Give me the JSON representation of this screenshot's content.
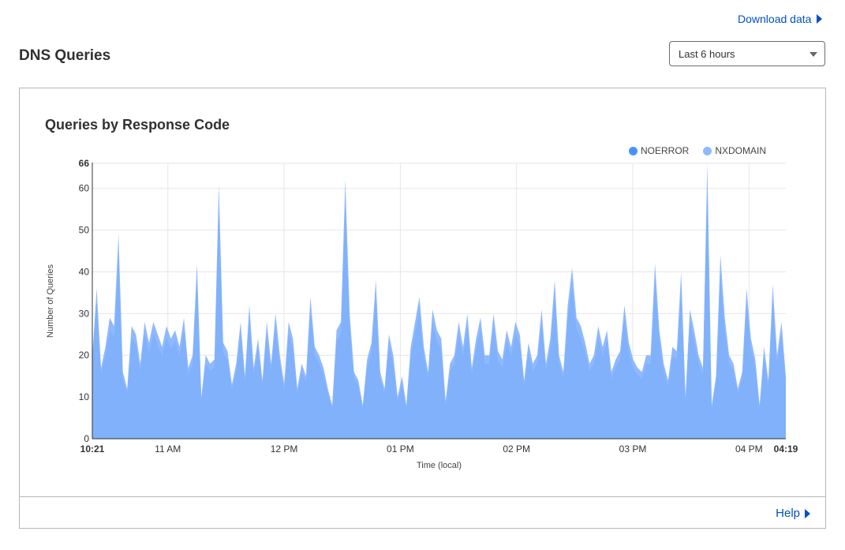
{
  "header": {
    "download_label": "Download data",
    "title": "DNS Queries",
    "range_select": {
      "selected": "Last 6 hours"
    }
  },
  "card": {
    "title": "Queries by Response Code",
    "help_label": "Help"
  },
  "colors": {
    "noerror": "#4693ff",
    "nxdomain": "#8fb9ff",
    "link": "#0051c3"
  },
  "chart_data": {
    "type": "area",
    "stacked": true,
    "title": "Queries by Response Code",
    "xlabel": "Time (local)",
    "ylabel": "Number of Queries",
    "ylim": [
      0,
      66
    ],
    "yticks": [
      "0",
      "10",
      "20",
      "30",
      "40",
      "50",
      "60",
      "66"
    ],
    "xticks": [
      "10:21",
      "11 AM",
      "12 PM",
      "01 PM",
      "02 PM",
      "03 PM",
      "04 PM",
      "04:19"
    ],
    "legend_position": "top-right",
    "grid": true,
    "series": [
      {
        "name": "NOERROR",
        "values": [
          0,
          0,
          0,
          0,
          0,
          0,
          0,
          0,
          0,
          0,
          0,
          0,
          0,
          0,
          0,
          0,
          0,
          0,
          0,
          0,
          0,
          0,
          0,
          0,
          0,
          0,
          0,
          0,
          0,
          0,
          0,
          0,
          0,
          0,
          0,
          0,
          0,
          0,
          0,
          0,
          0,
          0,
          0,
          0,
          0,
          0,
          0,
          0,
          0,
          0,
          0,
          0,
          0,
          0,
          0,
          0,
          0,
          0,
          0,
          0,
          0,
          0,
          0,
          0,
          0,
          0,
          0,
          0,
          0,
          0,
          0,
          0,
          0,
          0,
          0,
          0,
          0,
          0,
          0,
          0,
          0,
          0,
          0,
          0,
          0,
          0,
          0,
          0,
          0,
          0,
          0,
          0,
          0,
          0,
          0,
          0,
          0,
          0,
          0,
          0,
          0,
          0,
          0,
          0,
          0,
          0,
          0,
          0,
          0,
          0,
          0,
          0,
          0,
          0,
          0,
          0,
          0,
          0,
          0,
          0,
          0,
          0,
          0,
          0,
          0,
          0,
          0,
          0,
          0,
          0,
          0,
          0,
          0,
          0,
          0,
          0,
          0,
          0,
          0,
          0,
          0,
          0,
          0,
          0,
          0,
          0,
          0,
          0,
          0,
          0,
          0,
          0,
          0,
          0,
          0,
          0,
          0,
          0,
          0,
          0
        ]
      },
      {
        "name": "NXDOMAIN",
        "values": [
          20,
          36,
          17,
          22,
          29,
          27,
          49,
          16,
          12,
          27,
          25,
          18,
          28,
          23,
          28,
          25,
          22,
          27,
          24,
          26,
          22,
          29,
          17,
          20,
          42,
          10,
          20,
          18,
          19,
          61,
          23,
          21,
          13,
          18,
          28,
          15,
          32,
          17,
          24,
          14,
          28,
          18,
          30,
          20,
          13,
          28,
          24,
          12,
          18,
          15,
          34,
          22,
          20,
          17,
          12,
          8,
          26,
          28,
          62,
          30,
          16,
          14,
          8,
          19,
          23,
          38,
          16,
          12,
          25,
          20,
          10,
          15,
          8,
          22,
          28,
          34,
          22,
          16,
          31,
          26,
          24,
          9,
          18,
          20,
          28,
          22,
          30,
          17,
          24,
          29,
          20,
          20,
          30,
          21,
          19,
          26,
          22,
          28,
          25,
          14,
          23,
          18,
          20,
          31,
          18,
          24,
          38,
          20,
          16,
          32,
          41,
          29,
          27,
          23,
          18,
          20,
          27,
          22,
          26,
          16,
          19,
          21,
          32,
          23,
          19,
          17,
          16,
          20,
          20,
          42,
          26,
          18,
          14,
          22,
          21,
          40,
          10,
          31,
          26,
          20,
          17,
          66,
          8,
          15,
          44,
          29,
          20,
          18,
          12,
          16,
          36,
          24,
          19,
          8,
          22,
          14,
          37,
          20,
          28,
          15
        ]
      }
    ]
  }
}
